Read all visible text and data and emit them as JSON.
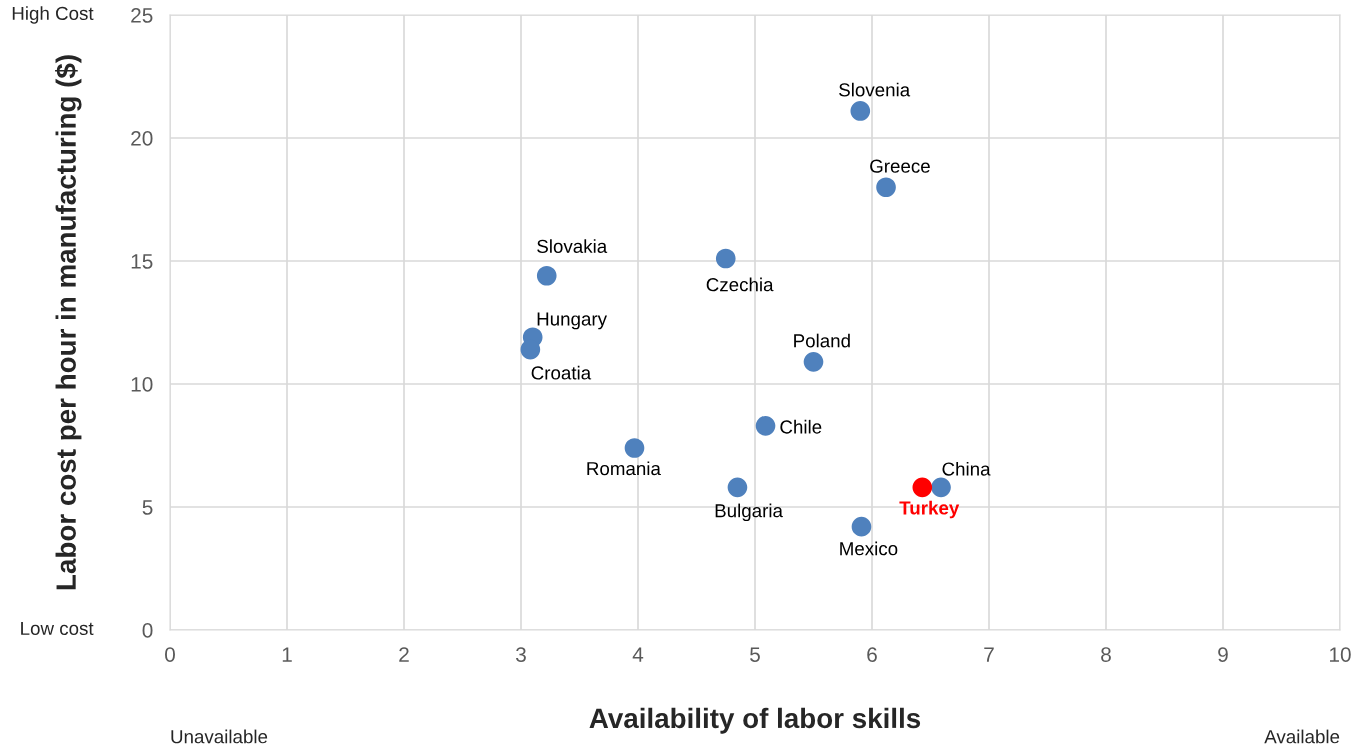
{
  "chart_data": {
    "type": "scatter",
    "xlabel": "Availability of labor skills",
    "ylabel": "Labor cost per hour in manufacturing ($)",
    "x": [
      5.9,
      6.12,
      3.22,
      4.75,
      3.1,
      3.08,
      5.5,
      5.09,
      3.97,
      4.85,
      6.59,
      6.43,
      5.91
    ],
    "series": [
      {
        "color": "#4f81bd",
        "values": [
          21.1,
          18.0,
          14.4,
          15.1,
          11.9,
          11.4,
          10.9,
          8.3,
          7.4,
          5.8,
          5.8,
          5.8,
          4.2
        ],
        "colors": [
          "#4f81bd",
          "#4f81bd",
          "#4f81bd",
          "#4f81bd",
          "#4f81bd",
          "#4f81bd",
          "#4f81bd",
          "#4f81bd",
          "#4f81bd",
          "#4f81bd",
          "#4f81bd",
          "#ff0000",
          "#4f81bd"
        ]
      }
    ],
    "annotations": [
      {
        "text": "Slovenia",
        "x": 5.9,
        "y": 21.1
      },
      {
        "text": "Greece",
        "x": 6.12,
        "y": 18.0
      },
      {
        "text": "Slovakia",
        "x": 3.22,
        "y": 14.4
      },
      {
        "text": "Czechia",
        "x": 4.75,
        "y": 15.1
      },
      {
        "text": "Hungary",
        "x": 3.1,
        "y": 11.9
      },
      {
        "text": "Croatia",
        "x": 3.08,
        "y": 11.4
      },
      {
        "text": "Poland",
        "x": 5.5,
        "y": 10.9
      },
      {
        "text": "Chile",
        "x": 5.09,
        "y": 8.3
      },
      {
        "text": "Romania",
        "x": 3.97,
        "y": 7.4
      },
      {
        "text": "Bulgaria",
        "x": 4.85,
        "y": 5.8
      },
      {
        "text": "China",
        "x": 6.59,
        "y": 5.8
      },
      {
        "text": "Turkey",
        "x": 6.43,
        "y": 5.8
      },
      {
        "text": "Mexico",
        "x": 5.91,
        "y": 4.2
      },
      "High Cost",
      "Low cost",
      "Unavailable",
      "Available"
    ],
    "xlim": [
      0,
      10
    ],
    "xticks": [
      0,
      1,
      2,
      3,
      4,
      5,
      6,
      7,
      8,
      9,
      10
    ],
    "ylim": [
      0,
      25
    ],
    "yticks": [
      0,
      5,
      10,
      15,
      20,
      25
    ],
    "grid": true,
    "marker": "circle"
  }
}
